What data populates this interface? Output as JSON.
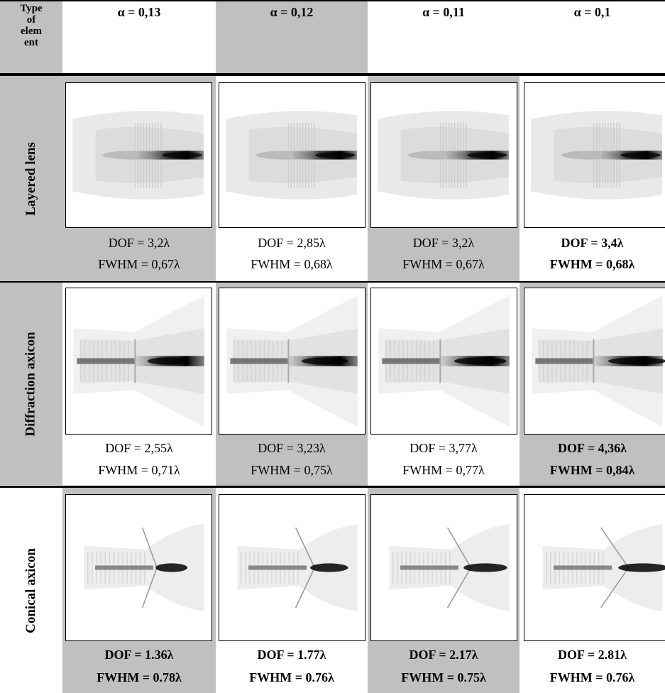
{
  "header": {
    "type_label": "Type\nof\nelem\nent",
    "alphas": [
      "α = 0,13",
      "α = 0,12",
      "α = 0,11",
      "α = 0,1"
    ]
  },
  "rows": [
    {
      "label": "Layered lens",
      "values": [
        {
          "dof": "DOF = 3,2λ",
          "fwhm": "FWHM = 0,67λ",
          "bold": false
        },
        {
          "dof": "DOF = 2,85λ",
          "fwhm": "FWHM = 0,68λ",
          "bold": false
        },
        {
          "dof": "DOF = 3,2λ",
          "fwhm": "FWHM = 0,67λ",
          "bold": false
        },
        {
          "dof": "DOF = 3,4λ",
          "fwhm": "FWHM = 0,68λ",
          "bold": true
        }
      ]
    },
    {
      "label": "Diffraction axicon",
      "values": [
        {
          "dof": "DOF = 2,55λ",
          "fwhm": "FWHM = 0,71λ",
          "bold": false
        },
        {
          "dof": "DOF = 3,23λ",
          "fwhm": "FWHM = 0,75λ",
          "bold": false
        },
        {
          "dof": "DOF = 3,77λ",
          "fwhm": "FWHM = 0,77λ",
          "bold": false
        },
        {
          "dof": "DOF = 4,36λ",
          "fwhm": "FWHM = 0,84λ",
          "bold": true
        }
      ]
    },
    {
      "label": "Conical axicon",
      "values": [
        {
          "dof": "DOF = 1.36λ",
          "fwhm": "FWHM = 0.78λ",
          "bold": true
        },
        {
          "dof": "DOF = 1.77λ",
          "fwhm": "FWHM = 0.76λ",
          "bold": true
        },
        {
          "dof": "DOF = 2.17λ",
          "fwhm": "FWHM = 0.75λ",
          "bold": true
        },
        {
          "dof": "DOF = 2.81λ",
          "fwhm": "FWHM = 0.76λ",
          "bold": true
        }
      ]
    }
  ]
}
